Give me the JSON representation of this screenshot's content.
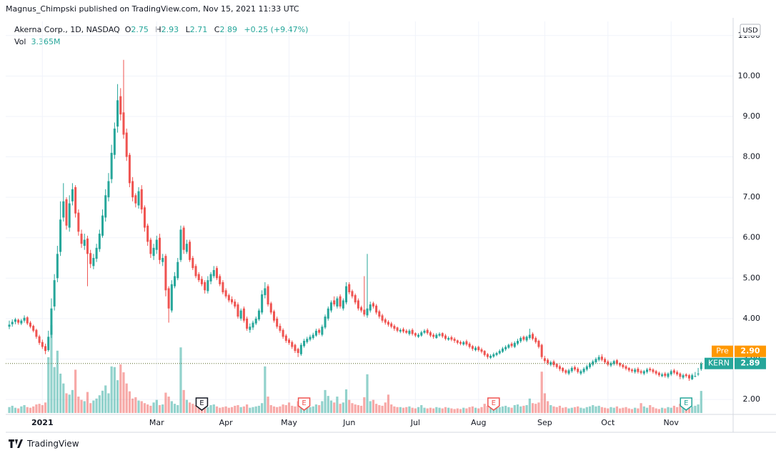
{
  "header": {
    "published": "Magnus_Chimpski published on TradingView.com, Nov 15, 2021 11:33 UTC"
  },
  "footer": {
    "brand": "TradingView"
  },
  "chart_data": {
    "type": "candlestick",
    "title": "Akerna Corp., 1D, NASDAQ",
    "legend_labels": {
      "open": "O",
      "high": "H",
      "low": "L",
      "close": "C",
      "volume": "Vol"
    },
    "change": "+0.25 (+9.47%)",
    "volume_label": "3.365M",
    "currency": "USD",
    "symbol": "KERN",
    "premarket": {
      "label": "Pre",
      "price": {
        "value": 2.9,
        "label": "2.90"
      },
      "color": "#ff9800"
    },
    "up_color": "#26a69a",
    "down_color": "#ef5350",
    "grid": true,
    "earnings": [
      "E",
      "E",
      "E",
      "E"
    ],
    "ylim": [
      1.63,
      11.35
    ],
    "yticks": [
      {
        "value": 2,
        "label": "2.00"
      },
      {
        "value": 3,
        "label": "3.00"
      },
      {
        "value": 4,
        "label": "4.00"
      },
      {
        "value": 5,
        "label": "5.00"
      },
      {
        "value": 6,
        "label": "6.00"
      },
      {
        "value": 7,
        "label": "7.00"
      },
      {
        "value": 8,
        "label": "8.00"
      },
      {
        "value": 9,
        "label": "9.00"
      },
      {
        "value": 10,
        "label": "10.00"
      },
      {
        "value": 11,
        "label": "11.00"
      }
    ],
    "categories": [
      null,
      null,
      null,
      null,
      null,
      null,
      null,
      null,
      null,
      null,
      null,
      "2021",
      null,
      null,
      null,
      null,
      null,
      null,
      null,
      null,
      null,
      null,
      null,
      null,
      null,
      null,
      null,
      null,
      null,
      null,
      null,
      null,
      null,
      null,
      null,
      null,
      null,
      null,
      null,
      null,
      null,
      null,
      null,
      null,
      null,
      null,
      null,
      null,
      null,
      "Mar",
      null,
      null,
      null,
      null,
      null,
      null,
      null,
      null,
      null,
      null,
      null,
      null,
      null,
      null,
      null,
      null,
      null,
      null,
      null,
      null,
      null,
      null,
      "Apr",
      null,
      null,
      null,
      null,
      null,
      null,
      null,
      null,
      null,
      null,
      null,
      null,
      null,
      null,
      null,
      null,
      null,
      null,
      null,
      null,
      "May",
      null,
      null,
      null,
      null,
      null,
      null,
      null,
      null,
      null,
      null,
      null,
      null,
      null,
      null,
      null,
      null,
      null,
      null,
      null,
      "Jun",
      null,
      null,
      null,
      null,
      null,
      null,
      null,
      null,
      null,
      null,
      null,
      null,
      null,
      null,
      null,
      null,
      null,
      null,
      null,
      null,
      null,
      "Jul",
      null,
      null,
      null,
      null,
      null,
      null,
      null,
      null,
      null,
      null,
      null,
      null,
      null,
      null,
      null,
      null,
      null,
      null,
      null,
      null,
      "Aug",
      null,
      null,
      null,
      null,
      null,
      null,
      null,
      null,
      null,
      null,
      null,
      null,
      null,
      null,
      null,
      null,
      null,
      null,
      null,
      null,
      null,
      "Sep",
      null,
      null,
      null,
      null,
      null,
      null,
      null,
      null,
      null,
      null,
      null,
      null,
      null,
      null,
      null,
      null,
      null,
      null,
      null,
      null,
      "Oct",
      null,
      null,
      null,
      null,
      null,
      null,
      null,
      null,
      null,
      null,
      null,
      null,
      null,
      null,
      null,
      null,
      null,
      null,
      null,
      null,
      "Nov",
      null,
      null,
      null,
      null,
      null,
      null,
      null,
      null,
      null,
      null
    ],
    "open": [
      3.8,
      3.86,
      3.92,
      3.97,
      3.88,
      3.95,
      4.03,
      3.9,
      3.82,
      3.72,
      3.56,
      3.42,
      3.32,
      3.22,
      3.6,
      4.3,
      5.0,
      5.65,
      6.5,
      6.95,
      6.25,
      6.9,
      7.25,
      6.62,
      6.1,
      5.8,
      5.98,
      5.62,
      5.3,
      5.48,
      5.72,
      6.05,
      6.5,
      7.0,
      7.45,
      8.05,
      8.75,
      9.5,
      9.1,
      8.6,
      8.05,
      7.4,
      7.05,
      6.8,
      7.2,
      6.75,
      6.3,
      5.95,
      5.55,
      5.7,
      6.0,
      5.4,
      5.55,
      4.75,
      4.2,
      4.8,
      5.0,
      5.45,
      6.25,
      5.65,
      5.9,
      5.5,
      5.3,
      5.1,
      4.98,
      4.9,
      4.68,
      4.92,
      5.05,
      5.25,
      5.05,
      4.9,
      4.7,
      4.58,
      4.48,
      4.42,
      4.35,
      4.0,
      4.25,
      4.0,
      3.72,
      3.78,
      3.88,
      3.98,
      4.15,
      4.58,
      4.8,
      4.38,
      4.18,
      4.0,
      3.82,
      3.72,
      3.58,
      3.48,
      3.42,
      3.35,
      3.25,
      3.12,
      3.32,
      3.42,
      3.48,
      3.52,
      3.58,
      3.72,
      3.6,
      3.78,
      4.0,
      4.2,
      4.45,
      4.3,
      4.55,
      4.25,
      4.4,
      4.85,
      4.68,
      4.58,
      4.45,
      4.28,
      4.22,
      4.08,
      4.2,
      4.38,
      4.32,
      4.18,
      4.08,
      3.98,
      3.92,
      3.88,
      3.82,
      3.78,
      3.68,
      3.74,
      3.7,
      3.62,
      3.72,
      3.64,
      3.55,
      3.58,
      3.65,
      3.72,
      3.66,
      3.6,
      3.52,
      3.58,
      3.64,
      3.58,
      3.48,
      3.54,
      3.5,
      3.46,
      3.42,
      3.36,
      3.44,
      3.38,
      3.32,
      3.22,
      3.3,
      3.24,
      3.2,
      3.12,
      3.03,
      3.06,
      3.1,
      3.14,
      3.18,
      3.24,
      3.28,
      3.38,
      3.3,
      3.38,
      3.44,
      3.55,
      3.46,
      3.52,
      3.62,
      3.52,
      3.45,
      3.35,
      3.02,
      2.98,
      2.86,
      2.94,
      2.88,
      2.82,
      2.78,
      2.72,
      2.64,
      2.7,
      2.8,
      2.76,
      2.64,
      2.68,
      2.74,
      2.8,
      2.86,
      2.92,
      2.98,
      3.06,
      3.0,
      2.94,
      2.84,
      2.88,
      2.97,
      2.9,
      2.86,
      2.82,
      2.78,
      2.74,
      2.68,
      2.76,
      2.7,
      2.64,
      2.68,
      2.76,
      2.74,
      2.7,
      2.66,
      2.58,
      2.64,
      2.56,
      2.62,
      2.72,
      2.68,
      2.64,
      2.54,
      2.62,
      2.6,
      2.5,
      2.58,
      2.62,
      2.75
    ],
    "high": [
      3.95,
      3.98,
      4.02,
      4.0,
      3.99,
      4.08,
      4.06,
      3.94,
      3.85,
      3.75,
      3.6,
      3.48,
      3.38,
      3.7,
      4.5,
      5.1,
      5.8,
      6.9,
      7.35,
      7.0,
      7.05,
      7.35,
      7.3,
      6.7,
      6.2,
      6.1,
      6.05,
      5.7,
      5.6,
      5.85,
      6.2,
      6.7,
      7.2,
      7.6,
      8.3,
      8.85,
      9.8,
      9.7,
      10.4,
      8.7,
      8.1,
      7.5,
      7.1,
      7.25,
      7.3,
      6.8,
      6.35,
      6.0,
      5.85,
      6.05,
      6.1,
      5.6,
      5.6,
      4.8,
      4.95,
      5.15,
      5.5,
      6.3,
      6.3,
      5.95,
      5.95,
      5.55,
      5.35,
      5.15,
      5.05,
      4.95,
      5.05,
      5.15,
      5.3,
      5.3,
      5.1,
      4.95,
      4.75,
      4.62,
      4.55,
      4.48,
      4.4,
      4.25,
      4.3,
      4.05,
      3.88,
      3.95,
      4.05,
      4.25,
      4.7,
      4.9,
      4.85,
      4.42,
      4.22,
      4.05,
      3.88,
      3.76,
      3.62,
      3.52,
      3.46,
      3.38,
      3.28,
      3.4,
      3.5,
      3.55,
      3.6,
      3.65,
      3.75,
      3.76,
      3.85,
      4.1,
      4.3,
      4.45,
      4.55,
      4.55,
      4.6,
      4.5,
      4.9,
      4.9,
      4.72,
      4.62,
      4.5,
      4.32,
      5.05,
      5.6,
      4.42,
      4.42,
      4.36,
      4.22,
      4.12,
      4.02,
      3.96,
      3.92,
      3.86,
      3.8,
      3.76,
      3.78,
      3.74,
      3.74,
      3.76,
      3.66,
      3.64,
      3.7,
      3.74,
      3.76,
      3.7,
      3.64,
      3.64,
      3.66,
      3.66,
      3.62,
      3.56,
      3.58,
      3.54,
      3.48,
      3.46,
      3.45,
      3.48,
      3.42,
      3.35,
      3.32,
      3.33,
      3.28,
      3.22,
      3.15,
      3.12,
      3.16,
      3.18,
      3.24,
      3.3,
      3.34,
      3.38,
      3.42,
      3.44,
      3.5,
      3.56,
      3.58,
      3.58,
      3.75,
      3.66,
      3.56,
      3.48,
      3.38,
      3.08,
      3.02,
      2.96,
      2.98,
      2.9,
      2.86,
      2.8,
      2.75,
      2.76,
      2.82,
      2.84,
      2.8,
      2.74,
      2.8,
      2.86,
      2.92,
      2.98,
      3.04,
      3.1,
      3.12,
      3.04,
      2.98,
      2.94,
      2.98,
      3.0,
      2.92,
      2.88,
      2.85,
      2.8,
      2.77,
      2.78,
      2.8,
      2.74,
      2.73,
      2.78,
      2.8,
      2.77,
      2.73,
      2.69,
      2.66,
      2.68,
      2.67,
      2.74,
      2.76,
      2.72,
      2.67,
      2.64,
      2.65,
      2.63,
      2.64,
      2.68,
      2.78,
      2.93
    ],
    "low": [
      3.74,
      3.8,
      3.86,
      3.85,
      3.84,
      3.9,
      3.84,
      3.76,
      3.66,
      3.5,
      3.35,
      3.25,
      3.12,
      3.18,
      3.52,
      4.2,
      4.9,
      5.55,
      6.4,
      6.2,
      6.15,
      6.8,
      6.5,
      6.05,
      5.75,
      5.7,
      4.8,
      5.25,
      5.22,
      5.4,
      5.65,
      6.0,
      6.4,
      6.9,
      7.35,
      7.95,
      8.6,
      8.9,
      8.45,
      7.9,
      7.25,
      6.9,
      6.75,
      6.72,
      6.6,
      6.15,
      5.8,
      5.5,
      5.45,
      5.6,
      5.35,
      5.3,
      4.55,
      3.9,
      4.15,
      4.75,
      4.95,
      5.4,
      5.6,
      5.6,
      5.4,
      5.2,
      5.0,
      4.9,
      4.8,
      4.62,
      4.62,
      4.85,
      5.0,
      4.95,
      4.8,
      4.6,
      4.5,
      4.4,
      4.35,
      4.25,
      4.0,
      3.95,
      3.9,
      3.7,
      3.65,
      3.72,
      3.84,
      3.94,
      4.1,
      4.5,
      4.3,
      4.1,
      3.9,
      3.75,
      3.65,
      3.5,
      3.4,
      3.35,
      3.25,
      3.15,
      3.05,
      3.08,
      3.28,
      3.38,
      3.44,
      3.48,
      3.55,
      3.6,
      3.56,
      3.74,
      3.95,
      4.15,
      4.3,
      4.25,
      4.25,
      4.2,
      4.35,
      4.6,
      4.5,
      4.35,
      4.2,
      4.15,
      4.05,
      4.02,
      4.15,
      4.25,
      4.1,
      4.0,
      3.9,
      3.85,
      3.8,
      3.76,
      3.7,
      3.66,
      3.64,
      3.64,
      3.62,
      3.58,
      3.58,
      3.54,
      3.52,
      3.55,
      3.62,
      3.6,
      3.54,
      3.5,
      3.5,
      3.55,
      3.52,
      3.46,
      3.45,
      3.44,
      3.4,
      3.36,
      3.34,
      3.33,
      3.32,
      3.26,
      3.2,
      3.19,
      3.18,
      3.14,
      3.06,
      3.0,
      3.0,
      3.03,
      3.07,
      3.11,
      3.15,
      3.2,
      3.25,
      3.28,
      3.27,
      3.34,
      3.4,
      3.44,
      3.42,
      3.48,
      3.46,
      3.38,
      3.26,
      3.0,
      2.9,
      2.85,
      2.82,
      2.8,
      2.76,
      2.7,
      2.66,
      2.62,
      2.6,
      2.66,
      2.7,
      2.64,
      2.6,
      2.64,
      2.7,
      2.76,
      2.82,
      2.88,
      2.94,
      2.94,
      2.88,
      2.82,
      2.8,
      2.84,
      2.84,
      2.8,
      2.76,
      2.72,
      2.68,
      2.66,
      2.64,
      2.64,
      2.62,
      2.6,
      2.64,
      2.68,
      2.64,
      2.6,
      2.56,
      2.55,
      2.54,
      2.52,
      2.58,
      2.62,
      2.58,
      2.5,
      2.5,
      2.54,
      2.46,
      2.48,
      2.55,
      2.58,
      2.71
    ],
    "close": [
      3.85,
      3.92,
      3.98,
      3.9,
      3.95,
      4.02,
      3.88,
      3.8,
      3.7,
      3.55,
      3.4,
      3.3,
      3.2,
      3.55,
      4.25,
      4.95,
      5.6,
      6.45,
      6.9,
      6.3,
      6.85,
      7.2,
      6.6,
      6.15,
      5.85,
      5.95,
      5.6,
      5.35,
      5.5,
      5.75,
      6.1,
      6.55,
      7.05,
      7.4,
      8.1,
      8.7,
      9.4,
      9.05,
      8.55,
      8.0,
      7.35,
      7.0,
      6.85,
      7.15,
      6.7,
      6.25,
      5.9,
      5.6,
      5.75,
      5.95,
      5.45,
      5.5,
      4.7,
      4.25,
      4.85,
      5.05,
      5.4,
      6.2,
      5.7,
      5.85,
      5.45,
      5.25,
      5.05,
      4.95,
      4.85,
      4.7,
      4.95,
      5.1,
      5.2,
      5.0,
      4.85,
      4.65,
      4.55,
      4.45,
      4.4,
      4.3,
      4.05,
      4.2,
      3.95,
      3.75,
      3.8,
      3.9,
      4.0,
      4.2,
      4.6,
      4.75,
      4.35,
      4.15,
      3.95,
      3.8,
      3.7,
      3.55,
      3.45,
      3.4,
      3.3,
      3.2,
      3.15,
      3.35,
      3.45,
      3.5,
      3.55,
      3.6,
      3.7,
      3.65,
      3.8,
      4.05,
      4.25,
      4.4,
      4.35,
      4.5,
      4.3,
      4.45,
      4.8,
      4.65,
      4.55,
      4.4,
      4.25,
      4.2,
      4.1,
      4.25,
      4.35,
      4.3,
      4.15,
      4.05,
      3.95,
      3.9,
      3.85,
      3.8,
      3.75,
      3.7,
      3.72,
      3.68,
      3.65,
      3.7,
      3.62,
      3.58,
      3.6,
      3.66,
      3.7,
      3.64,
      3.58,
      3.55,
      3.6,
      3.62,
      3.56,
      3.5,
      3.52,
      3.48,
      3.45,
      3.4,
      3.38,
      3.42,
      3.36,
      3.3,
      3.25,
      3.28,
      3.22,
      3.18,
      3.1,
      3.05,
      3.08,
      3.12,
      3.15,
      3.2,
      3.26,
      3.3,
      3.35,
      3.32,
      3.4,
      3.45,
      3.52,
      3.48,
      3.55,
      3.6,
      3.5,
      3.42,
      3.3,
      3.05,
      2.95,
      2.9,
      2.92,
      2.85,
      2.8,
      2.75,
      2.7,
      2.66,
      2.72,
      2.78,
      2.74,
      2.68,
      2.7,
      2.76,
      2.82,
      2.88,
      2.94,
      3.0,
      3.05,
      2.98,
      2.92,
      2.86,
      2.9,
      2.95,
      2.88,
      2.84,
      2.8,
      2.76,
      2.72,
      2.7,
      2.74,
      2.68,
      2.66,
      2.7,
      2.74,
      2.72,
      2.68,
      2.64,
      2.6,
      2.62,
      2.58,
      2.64,
      2.7,
      2.66,
      2.62,
      2.56,
      2.6,
      2.58,
      2.52,
      2.6,
      2.58,
      2.64,
      2.89
    ],
    "volume": [
      0.9,
      1.1,
      0.8,
      0.7,
      1.0,
      1.2,
      0.9,
      0.8,
      1.0,
      1.3,
      1.4,
      1.2,
      1.6,
      8.5,
      13.4,
      7.0,
      9.5,
      6.0,
      4.5,
      3.0,
      2.8,
      3.5,
      6.6,
      2.5,
      2.0,
      1.8,
      3.2,
      1.5,
      1.9,
      2.2,
      2.7,
      3.4,
      4.2,
      3.0,
      7.1,
      7.0,
      5.0,
      7.4,
      6.2,
      4.5,
      3.3,
      2.2,
      2.4,
      1.9,
      1.8,
      1.5,
      1.3,
      1.1,
      1.6,
      2.0,
      1.2,
      1.3,
      3.1,
      2.5,
      1.8,
      1.4,
      1.2,
      10.0,
      3.5,
      2.0,
      1.6,
      1.4,
      1.2,
      1.1,
      0.9,
      1.0,
      0.9,
      1.2,
      1.3,
      1.0,
      0.8,
      0.9,
      1.0,
      0.8,
      0.9,
      1.1,
      1.2,
      0.9,
      1.0,
      1.3,
      0.8,
      0.9,
      1.0,
      1.1,
      1.5,
      7.1,
      2.5,
      1.2,
      1.0,
      0.9,
      1.0,
      1.3,
      1.2,
      1.6,
      1.1,
      1.0,
      1.8,
      2.2,
      1.4,
      1.0,
      0.9,
      1.0,
      1.3,
      1.2,
      1.8,
      3.5,
      2.6,
      1.9,
      1.6,
      2.5,
      1.4,
      1.6,
      3.6,
      2.0,
      1.5,
      1.3,
      1.2,
      1.1,
      2.4,
      5.9,
      1.8,
      2.0,
      1.4,
      1.2,
      1.1,
      1.6,
      2.8,
      1.3,
      1.0,
      0.9,
      0.9,
      0.8,
      0.9,
      1.0,
      0.8,
      0.7,
      0.9,
      1.2,
      0.8,
      0.7,
      0.8,
      0.7,
      0.9,
      0.8,
      0.7,
      0.9,
      0.8,
      0.7,
      0.6,
      0.7,
      0.6,
      0.8,
      0.7,
      0.9,
      1.0,
      0.8,
      0.7,
      0.9,
      1.4,
      1.1,
      0.8,
      0.7,
      0.8,
      0.9,
      1.0,
      1.1,
      0.9,
      0.8,
      1.2,
      1.3,
      1.0,
      1.1,
      1.2,
      2.2,
      1.5,
      1.4,
      1.6,
      6.3,
      3.0,
      1.8,
      1.2,
      1.0,
      0.9,
      1.1,
      0.8,
      0.9,
      0.7,
      0.8,
      0.9,
      1.0,
      0.8,
      0.7,
      0.9,
      1.0,
      1.2,
      1.0,
      1.1,
      0.9,
      0.8,
      0.7,
      0.9,
      0.8,
      1.0,
      0.7,
      0.8,
      0.9,
      0.7,
      0.6,
      0.8,
      0.7,
      1.5,
      1.0,
      0.8,
      1.2,
      0.9,
      0.7,
      0.6,
      0.8,
      0.7,
      0.9,
      0.8,
      1.1,
      0.9,
      1.4,
      0.8,
      0.7,
      0.9,
      1.0,
      1.1,
      1.3,
      3.365
    ]
  }
}
